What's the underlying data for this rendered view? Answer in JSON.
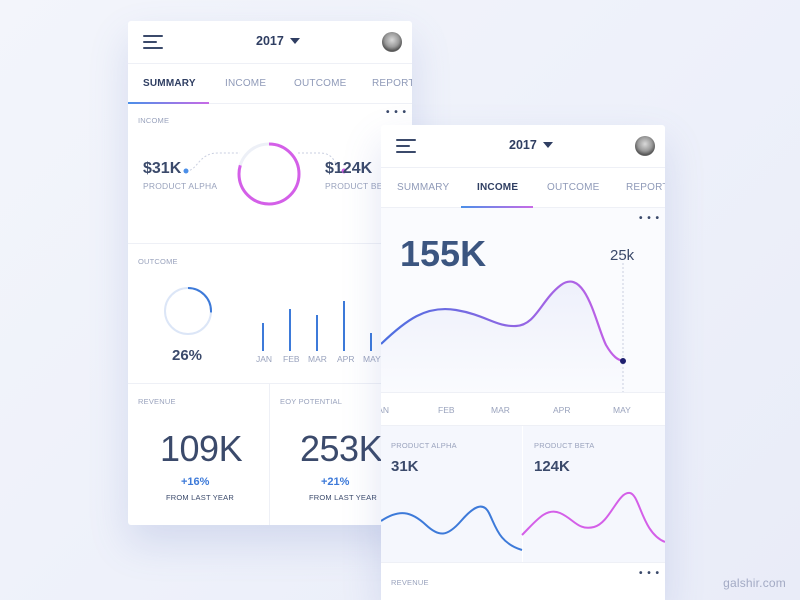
{
  "colors": {
    "accent_blue": "#3d7ad9",
    "accent_purple": "#d45fe8",
    "text_dark": "#2f3e62",
    "text_muted": "#9aa3bd"
  },
  "back_card": {
    "header": {
      "year": "2017",
      "menu_icon": "hamburger-icon",
      "dropdown_icon": "caret-down-icon"
    },
    "tabs": [
      {
        "label": "SUMMARY",
        "active": true
      },
      {
        "label": "INCOME",
        "active": false
      },
      {
        "label": "OUTCOME",
        "active": false
      },
      {
        "label": "REPORTS",
        "active": false
      }
    ],
    "income": {
      "label": "INCOME",
      "more": "• • •",
      "alpha_value": "$31K",
      "alpha_label": "PRODUCT ALPHA",
      "beta_value": "$124K",
      "beta_label": "PRODUCT BETA"
    },
    "outcome": {
      "label": "OUTCOME",
      "percent": "26%",
      "percent_fraction": 0.26,
      "months": [
        "JAN",
        "FEB",
        "MAR",
        "APR",
        "MAY"
      ],
      "bar_values": [
        0.52,
        0.78,
        0.66,
        0.93,
        0.34
      ]
    },
    "revenue": {
      "label": "REVENUE",
      "value": "109K",
      "change": "+16%",
      "note": "FROM LAST YEAR"
    },
    "eoy": {
      "label": "EOY POTENTIAL",
      "value": "253K",
      "change": "+21%",
      "note": "FROM LAST YEAR"
    }
  },
  "front_card": {
    "header": {
      "year": "2017"
    },
    "tabs": [
      {
        "label": "SUMMARY",
        "active": false
      },
      {
        "label": "INCOME",
        "active": true
      },
      {
        "label": "OUTCOME",
        "active": false
      },
      {
        "label": "REPORTS",
        "active": false
      }
    ],
    "income_chart": {
      "more": "• • •",
      "total": "155K",
      "marker_value": "25k",
      "months": [
        "JAN",
        "FEB",
        "MAR",
        "APR",
        "MAY"
      ]
    },
    "product_alpha": {
      "label": "PRODUCT ALPHA",
      "value": "31K"
    },
    "product_beta": {
      "label": "PRODUCT BETA",
      "value": "124K"
    },
    "revenue": {
      "label": "REVENUE",
      "more": "• • •"
    }
  },
  "watermark": "galshir.com"
}
